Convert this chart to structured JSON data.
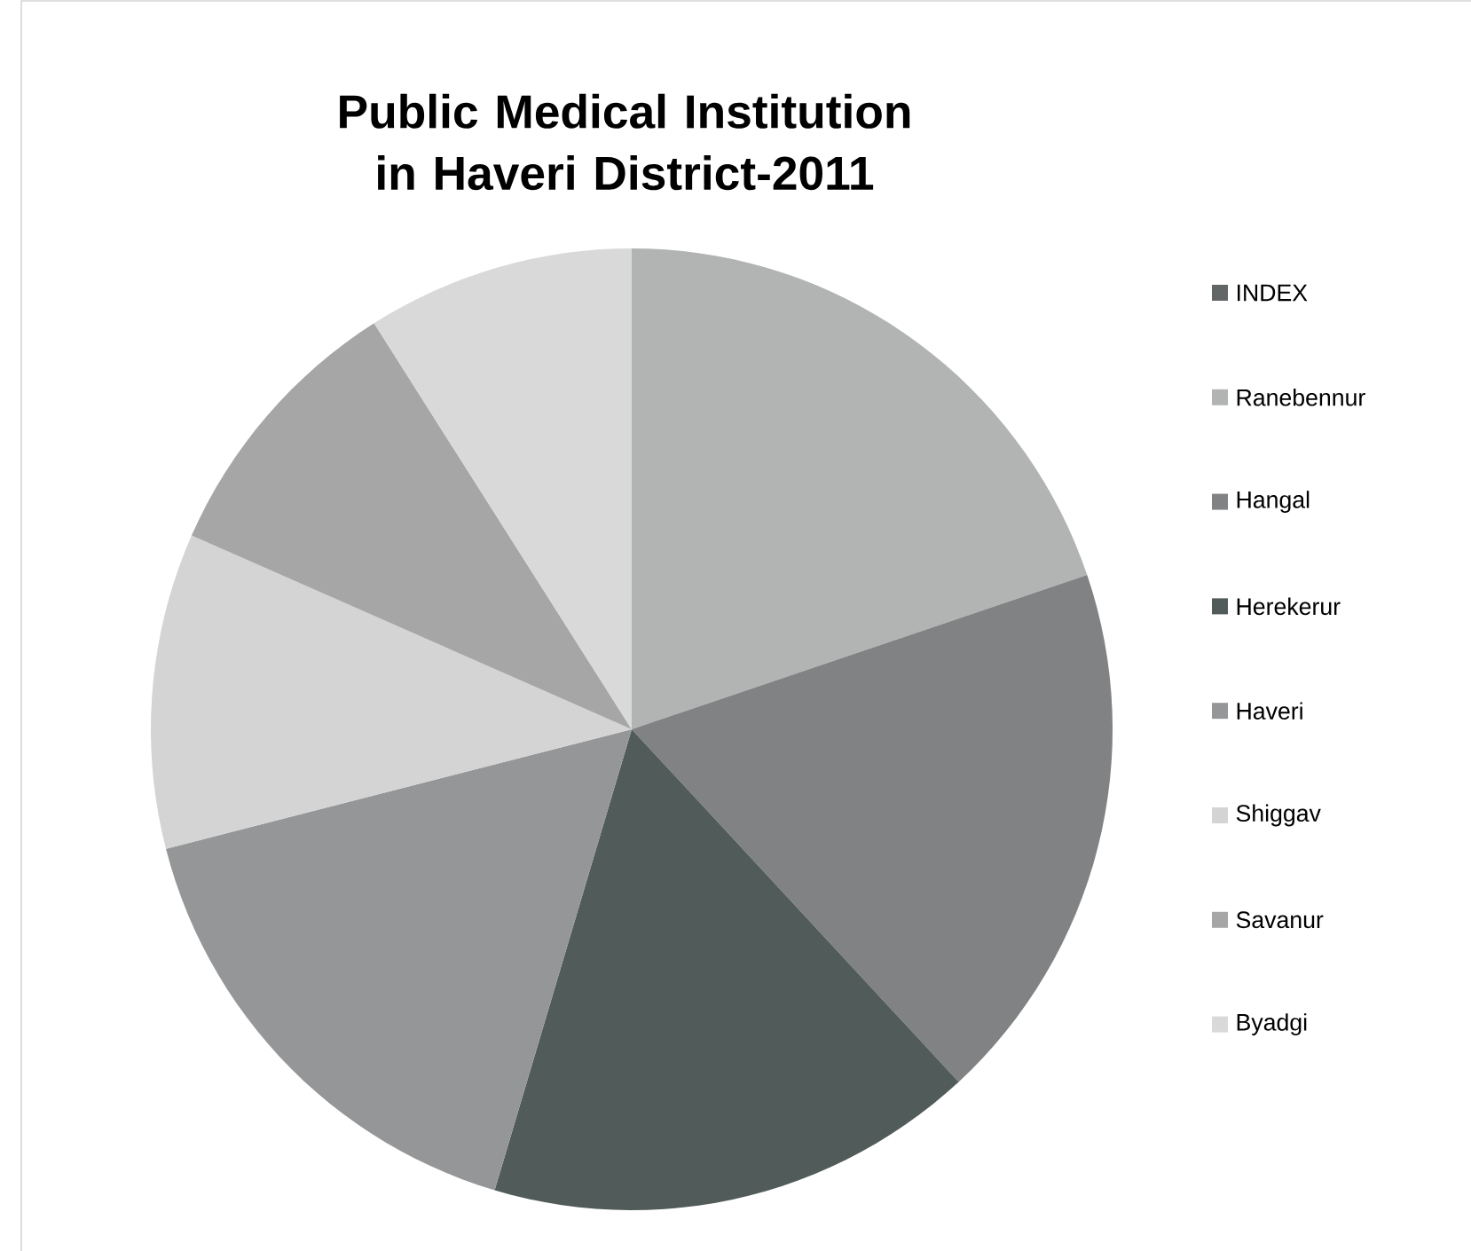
{
  "chart_data": {
    "type": "pie",
    "title": "Public Medical Institution in Haveri District-2011",
    "categories": [
      "INDEX",
      "Ranebennur",
      "Hangal",
      "Herekerur",
      "Haveri",
      "Shiggav",
      "Savanur",
      "Byadgi"
    ],
    "values": [
      0,
      19.8,
      18.3,
      16.5,
      16.4,
      10.6,
      9.4,
      9.0
    ],
    "colors": [
      "#636667",
      "#b2b4b3",
      "#808283",
      "#515b59",
      "#959697",
      "#d4d4d4",
      "#a6a6a6",
      "#d9d9d9"
    ],
    "legend": "right"
  }
}
